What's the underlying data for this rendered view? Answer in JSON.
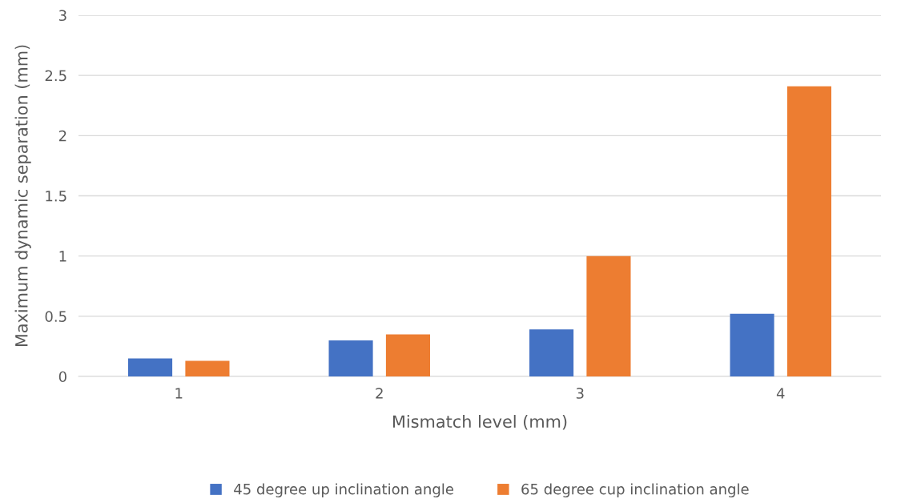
{
  "chart_data": {
    "type": "bar",
    "xlabel": "Mismatch level (mm)",
    "ylabel": "Maximum dynamic separation (mm)",
    "categories": [
      "1",
      "2",
      "3",
      "4"
    ],
    "series": [
      {
        "name": "45 degree up inclination angle",
        "color": "#4472c4",
        "values": [
          0.15,
          0.3,
          0.39,
          0.52
        ]
      },
      {
        "name": "65 degree cup inclination angle",
        "color": "#ed7d31",
        "values": [
          0.13,
          0.35,
          1.0,
          2.41
        ]
      }
    ],
    "ylim": [
      0,
      3
    ],
    "yticks": [
      0,
      0.5,
      1,
      1.5,
      2,
      2.5,
      3
    ],
    "grid": "y",
    "legend": "bottom"
  }
}
